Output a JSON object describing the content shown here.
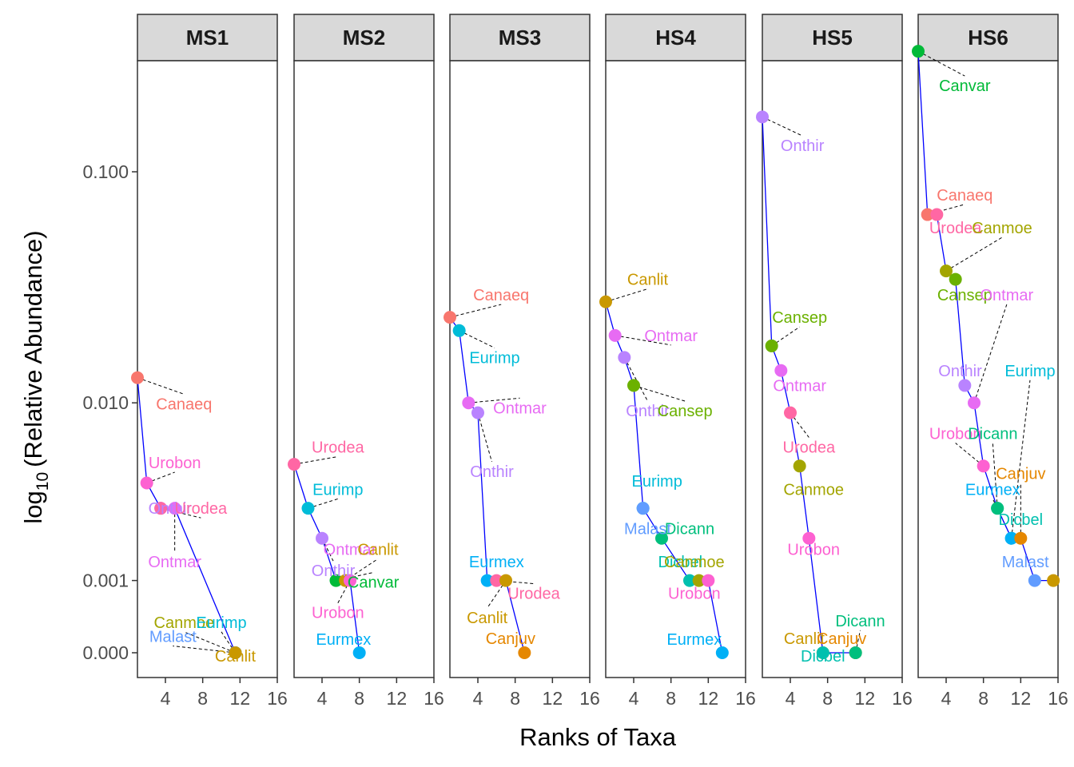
{
  "chart_data": {
    "type": "scatter",
    "subtype": "rank-abundance",
    "xlabel": "Ranks of Taxa",
    "ylabel_base": "log",
    "ylabel_sub": "10",
    "ylabel_rest": "(Relative Abundance)",
    "x_ticks": [
      4,
      8,
      12,
      16
    ],
    "x_range": [
      1,
      16
    ],
    "y_scale": "log10(x + 0.001) axis",
    "y_ticks": [
      {
        "value": 0.1,
        "label": "0.100"
      },
      {
        "value": 0.01,
        "label": "0.010"
      },
      {
        "value": 0.001,
        "label": "0.001"
      },
      {
        "value": 0.0,
        "label": "0.000"
      }
    ],
    "line_color": "#0000ff",
    "connector_color": "#000000",
    "taxa_colors": {
      "Canaeq": "#F8766D",
      "Canjuv": "#E58700",
      "Canlit": "#C99800",
      "Canmoe": "#A3A500",
      "Cansep": "#6BB100",
      "Canvar": "#00BA38",
      "Dicann": "#00BF7D",
      "Dicbel": "#00C0AF",
      "Eurimp": "#00BCD8",
      "Eurmex": "#00B0F6",
      "Malast": "#619CFF",
      "Onthir": "#B983FF",
      "Ontmar": "#E76BF3",
      "Urobon": "#FD61D1",
      "Urodea": "#FF67A4"
    },
    "panels": [
      {
        "name": "MS1",
        "points": [
          {
            "taxon": "Canaeq",
            "rank": 1.0,
            "abundance": 0.013
          },
          {
            "taxon": "Urobon",
            "rank": 2.0,
            "abundance": 0.0041
          },
          {
            "taxon": "Onthir",
            "rank": 3.5,
            "abundance": 0.003
          },
          {
            "taxon": "Urodea",
            "rank": 3.5,
            "abundance": 0.003
          },
          {
            "taxon": "Ontmar",
            "rank": 5.0,
            "abundance": 0.003
          },
          {
            "taxon": "Canmoe",
            "rank": 11.5,
            "abundance": 0.0
          },
          {
            "taxon": "Eurimp",
            "rank": 11.5,
            "abundance": 0.0
          },
          {
            "taxon": "Malast",
            "rank": 11.5,
            "abundance": 0.0
          },
          {
            "taxon": "Canlit",
            "rank": 11.5,
            "abundance": 0.0
          }
        ],
        "labels": [
          {
            "taxon": "Canaeq",
            "rank": 6.0,
            "abundance": 0.0099
          },
          {
            "taxon": "Urobon",
            "rank": 5.0,
            "abundance": 0.0052
          },
          {
            "taxon": "Onthir",
            "rank": 4.5,
            "abundance": 0.003
          },
          {
            "taxon": "Urodea",
            "rank": 7.8,
            "abundance": 0.003
          },
          {
            "taxon": "Ontmar",
            "rank": 5.0,
            "abundance": 0.0014
          },
          {
            "taxon": "Canmoe",
            "rank": 6.0,
            "abundance": 0.00034
          },
          {
            "taxon": "Eurimp",
            "rank": 10.0,
            "abundance": 0.00034
          },
          {
            "taxon": "Malast",
            "rank": 4.8,
            "abundance": 0.00017
          },
          {
            "taxon": "Canlit",
            "rank": 11.5,
            "abundance": -3e-05
          }
        ]
      },
      {
        "name": "MS2",
        "points": [
          {
            "taxon": "Urodea",
            "rank": 1.0,
            "abundance": 0.0051
          },
          {
            "taxon": "Eurimp",
            "rank": 2.5,
            "abundance": 0.003
          },
          {
            "taxon": "Onthir",
            "rank": 4.0,
            "abundance": 0.002
          },
          {
            "taxon": "Canvar",
            "rank": 5.5,
            "abundance": 0.001
          },
          {
            "taxon": "Canlit",
            "rank": 6.5,
            "abundance": 0.001
          },
          {
            "taxon": "Ontmar",
            "rank": 7.0,
            "abundance": 0.001
          },
          {
            "taxon": "Urobon",
            "rank": 7.0,
            "abundance": 0.001
          },
          {
            "taxon": "Eurmex",
            "rank": 8.0,
            "abundance": 0.0
          }
        ],
        "labels": [
          {
            "taxon": "Urodea",
            "rank": 5.7,
            "abundance": 0.0062
          },
          {
            "taxon": "Eurimp",
            "rank": 5.7,
            "abundance": 0.0038
          },
          {
            "taxon": "Ontmar",
            "rank": 7.0,
            "abundance": 0.0017
          },
          {
            "taxon": "Canlit",
            "rank": 10.0,
            "abundance": 0.0017
          },
          {
            "taxon": "Onthir",
            "rank": 5.2,
            "abundance": 0.0012
          },
          {
            "taxon": "Canvar",
            "rank": 9.5,
            "abundance": 0.00097
          },
          {
            "taxon": "Urobon",
            "rank": 5.7,
            "abundance": 0.00047
          },
          {
            "taxon": "Eurmex",
            "rank": 6.3,
            "abundance": 0.00014
          }
        ]
      },
      {
        "name": "MS3",
        "points": [
          {
            "taxon": "Canaeq",
            "rank": 1.0,
            "abundance": 0.024
          },
          {
            "taxon": "Eurimp",
            "rank": 2.0,
            "abundance": 0.021
          },
          {
            "taxon": "Ontmar",
            "rank": 3.0,
            "abundance": 0.01
          },
          {
            "taxon": "Onthir",
            "rank": 4.0,
            "abundance": 0.009
          },
          {
            "taxon": "Eurmex",
            "rank": 5.0,
            "abundance": 0.001
          },
          {
            "taxon": "Urodea",
            "rank": 6.0,
            "abundance": 0.001
          },
          {
            "taxon": "Canlit",
            "rank": 7.0,
            "abundance": 0.001
          },
          {
            "taxon": "Canjuv",
            "rank": 9.0,
            "abundance": 0.0
          }
        ],
        "labels": [
          {
            "taxon": "Canaeq",
            "rank": 6.5,
            "abundance": 0.03
          },
          {
            "taxon": "Eurimp",
            "rank": 5.8,
            "abundance": 0.016
          },
          {
            "taxon": "Ontmar",
            "rank": 8.5,
            "abundance": 0.0095
          },
          {
            "taxon": "Onthir",
            "rank": 5.5,
            "abundance": 0.0047
          },
          {
            "taxon": "Eurmex",
            "rank": 6.0,
            "abundance": 0.0014
          },
          {
            "taxon": "Urodea",
            "rank": 10.0,
            "abundance": 0.00077
          },
          {
            "taxon": "Canlit",
            "rank": 5.0,
            "abundance": 0.0004
          },
          {
            "taxon": "Canjuv",
            "rank": 7.5,
            "abundance": 0.00015
          }
        ]
      },
      {
        "name": "HS4",
        "points": [
          {
            "taxon": "Canlit",
            "rank": 1.0,
            "abundance": 0.028
          },
          {
            "taxon": "Ontmar",
            "rank": 2.0,
            "abundance": 0.02
          },
          {
            "taxon": "Onthir",
            "rank": 3.0,
            "abundance": 0.016
          },
          {
            "taxon": "Cansep",
            "rank": 4.0,
            "abundance": 0.012
          },
          {
            "taxon": "Eurimp",
            "rank": 5.0,
            "abundance": 0.003
          },
          {
            "taxon": "Malast",
            "rank": 5.0,
            "abundance": 0.003
          },
          {
            "taxon": "Dicann",
            "rank": 7.0,
            "abundance": 0.002
          },
          {
            "taxon": "Dicbel",
            "rank": 10.0,
            "abundance": 0.001
          },
          {
            "taxon": "Canmoe",
            "rank": 11.0,
            "abundance": 0.001
          },
          {
            "taxon": "Urobon",
            "rank": 12.0,
            "abundance": 0.001
          },
          {
            "taxon": "Eurmex",
            "rank": 13.5,
            "abundance": 0.0
          }
        ],
        "labels": [
          {
            "taxon": "Canlit",
            "rank": 5.5,
            "abundance": 0.035
          },
          {
            "taxon": "Ontmar",
            "rank": 8.0,
            "abundance": 0.02
          },
          {
            "taxon": "Onthir",
            "rank": 5.5,
            "abundance": 0.0092
          },
          {
            "taxon": "Cansep",
            "rank": 9.5,
            "abundance": 0.0092
          },
          {
            "taxon": "Eurimp",
            "rank": 6.5,
            "abundance": 0.0042
          },
          {
            "taxon": "Malast",
            "rank": 5.5,
            "abundance": 0.0023
          },
          {
            "taxon": "Dicann",
            "rank": 10.0,
            "abundance": 0.0023
          },
          {
            "taxon": "Dicbel",
            "rank": 9.0,
            "abundance": 0.0014
          },
          {
            "taxon": "Canmoe",
            "rank": 10.5,
            "abundance": 0.0014
          },
          {
            "taxon": "Urobon",
            "rank": 10.5,
            "abundance": 0.00077
          },
          {
            "taxon": "Eurmex",
            "rank": 10.5,
            "abundance": 0.00014
          }
        ]
      },
      {
        "name": "HS5",
        "points": [
          {
            "taxon": "Onthir",
            "rank": 1.0,
            "abundance": 0.17
          },
          {
            "taxon": "Cansep",
            "rank": 2.0,
            "abundance": 0.018
          },
          {
            "taxon": "Ontmar",
            "rank": 3.0,
            "abundance": 0.014
          },
          {
            "taxon": "Urodea",
            "rank": 4.0,
            "abundance": 0.009
          },
          {
            "taxon": "Canmoe",
            "rank": 5.0,
            "abundance": 0.005
          },
          {
            "taxon": "Urobon",
            "rank": 6.0,
            "abundance": 0.002
          },
          {
            "taxon": "Canlit",
            "rank": 7.5,
            "abundance": 0.0
          },
          {
            "taxon": "Dicbel",
            "rank": 7.5,
            "abundance": 0.0
          },
          {
            "taxon": "Canjuv",
            "rank": 11.0,
            "abundance": 0.0
          },
          {
            "taxon": "Dicann",
            "rank": 11.0,
            "abundance": 0.0
          }
        ],
        "labels": [
          {
            "taxon": "Onthir",
            "rank": 5.3,
            "abundance": 0.129
          },
          {
            "taxon": "Cansep",
            "rank": 5.0,
            "abundance": 0.024
          },
          {
            "taxon": "Ontmar",
            "rank": 5.0,
            "abundance": 0.012
          },
          {
            "taxon": "Urodea",
            "rank": 6.0,
            "abundance": 0.0062
          },
          {
            "taxon": "Canmoe",
            "rank": 6.5,
            "abundance": 0.0038
          },
          {
            "taxon": "Urobon",
            "rank": 6.5,
            "abundance": 0.0017
          },
          {
            "taxon": "Dicann",
            "rank": 11.5,
            "abundance": 0.00036
          },
          {
            "taxon": "Canlit",
            "rank": 5.5,
            "abundance": 0.00015
          },
          {
            "taxon": "Canjuv",
            "rank": 9.5,
            "abundance": 0.00015
          },
          {
            "taxon": "Dicbel",
            "rank": 7.5,
            "abundance": -3e-05
          }
        ]
      },
      {
        "name": "HS6",
        "points": [
          {
            "taxon": "Canvar",
            "rank": 1.0,
            "abundance": 0.32
          },
          {
            "taxon": "Canaeq",
            "rank": 2.0,
            "abundance": 0.066
          },
          {
            "taxon": "Urodea",
            "rank": 3.0,
            "abundance": 0.066
          },
          {
            "taxon": "Canmoe",
            "rank": 4.0,
            "abundance": 0.038
          },
          {
            "taxon": "Cansep",
            "rank": 5.0,
            "abundance": 0.035
          },
          {
            "taxon": "Onthir",
            "rank": 6.0,
            "abundance": 0.012
          },
          {
            "taxon": "Ontmar",
            "rank": 7.0,
            "abundance": 0.01
          },
          {
            "taxon": "Urobon",
            "rank": 8.0,
            "abundance": 0.005
          },
          {
            "taxon": "Dicbel",
            "rank": 9.5,
            "abundance": 0.003
          },
          {
            "taxon": "Dicann",
            "rank": 9.5,
            "abundance": 0.003
          },
          {
            "taxon": "Eurimp",
            "rank": 11.0,
            "abundance": 0.002
          },
          {
            "taxon": "Eurmex",
            "rank": 11.0,
            "abundance": 0.002
          },
          {
            "taxon": "Canjuv",
            "rank": 12.0,
            "abundance": 0.002
          },
          {
            "taxon": "Malast",
            "rank": 13.5,
            "abundance": 0.001
          },
          {
            "taxon": "Canlit",
            "rank": 15.5,
            "abundance": 0.001
          }
        ],
        "labels": [
          {
            "taxon": "Canvar",
            "rank": 6.0,
            "abundance": 0.23
          },
          {
            "taxon": "Canaeq",
            "rank": 6.0,
            "abundance": 0.08
          },
          {
            "taxon": "Urodea",
            "rank": 5.0,
            "abundance": 0.058
          },
          {
            "taxon": "Canmoe",
            "rank": 10.0,
            "abundance": 0.058
          },
          {
            "taxon": "Cansep",
            "rank": 6.0,
            "abundance": 0.03
          },
          {
            "taxon": "Ontmar",
            "rank": 10.5,
            "abundance": 0.03
          },
          {
            "taxon": "Onthir",
            "rank": 5.5,
            "abundance": 0.014
          },
          {
            "taxon": "Eurimp",
            "rank": 13.0,
            "abundance": 0.014
          },
          {
            "taxon": "Urobon",
            "rank": 5.0,
            "abundance": 0.0072
          },
          {
            "taxon": "Dicann",
            "rank": 9.0,
            "abundance": 0.0072
          },
          {
            "taxon": "Canjuv",
            "rank": 12.0,
            "abundance": 0.0046
          },
          {
            "taxon": "Eurmex",
            "rank": 9.0,
            "abundance": 0.0038
          },
          {
            "taxon": "Dicbel",
            "rank": 12.0,
            "abundance": 0.0026
          },
          {
            "taxon": "Malast",
            "rank": 12.5,
            "abundance": 0.0014
          }
        ]
      }
    ]
  }
}
